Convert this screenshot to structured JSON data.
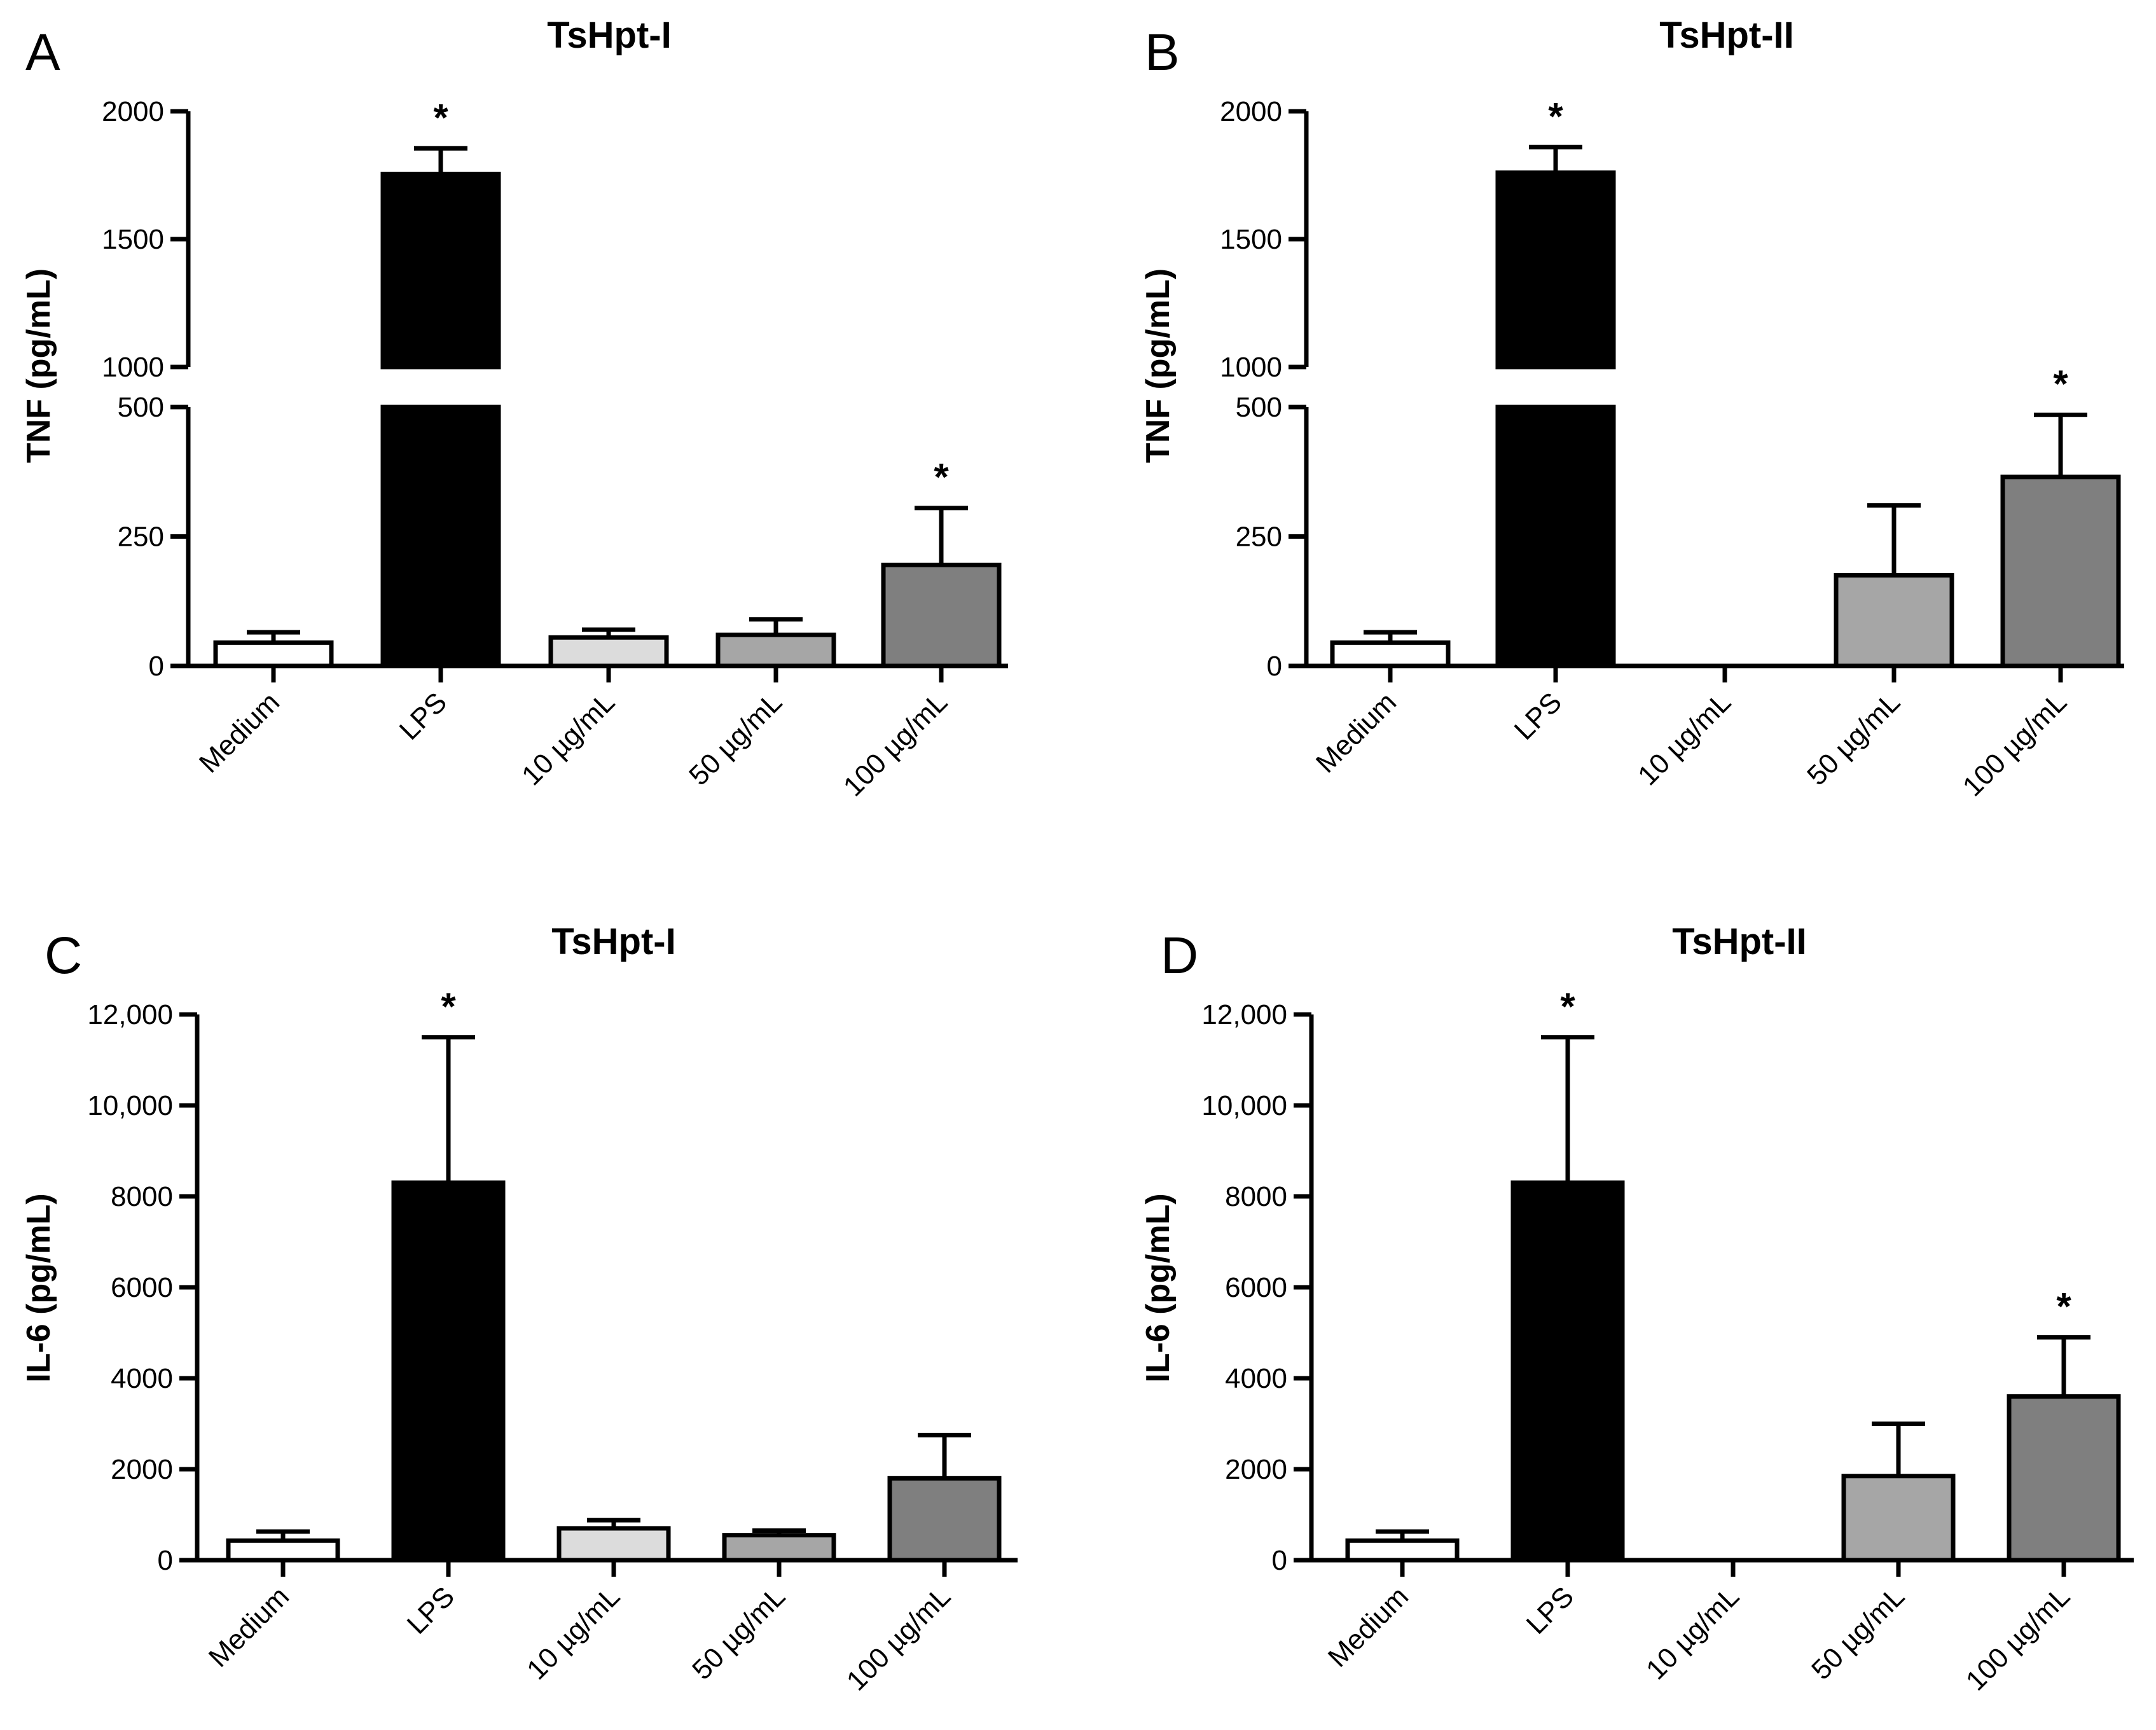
{
  "figure": {
    "colors": {
      "Medium": "#ffffff",
      "LPS": "#000000",
      "10 µg/mL": "#dcdcdc",
      "50 µg/mL": "#a6a6a6",
      "100 µg/mL": "#7f7f7f"
    }
  },
  "chart_data": [
    {
      "type": "bar",
      "panel": "A",
      "title": "TsHpt-I",
      "ylabel": "TNF (pg/mL)",
      "xlabel": "",
      "categories": [
        "Medium",
        "LPS",
        "10 µg/mL",
        "50 µg/mL",
        "100 µg/mL"
      ],
      "values": [
        45,
        1755,
        55,
        60,
        195
      ],
      "errors": [
        20,
        100,
        15,
        30,
        110
      ],
      "significance": [
        "",
        "*",
        "",
        "",
        "*"
      ],
      "axis_break": {
        "lower": [
          0,
          500
        ],
        "upper": [
          1000,
          2000
        ]
      },
      "yticks_lower": [
        0,
        250,
        500
      ],
      "yticks_upper": [
        1000,
        1500,
        2000
      ],
      "ytick_labels_lower": [
        "0",
        "250",
        "500"
      ],
      "ytick_labels_upper": [
        "1000",
        "1500",
        "2000"
      ]
    },
    {
      "type": "bar",
      "panel": "B",
      "title": "TsHpt-II",
      "ylabel": "TNF (pg/mL)",
      "xlabel": "",
      "categories": [
        "Medium",
        "LPS",
        "10 µg/mL",
        "50 µg/mL",
        "100 µg/mL"
      ],
      "values": [
        45,
        1760,
        0,
        175,
        365
      ],
      "errors": [
        20,
        100,
        0,
        135,
        120
      ],
      "significance": [
        "",
        "*",
        "",
        "",
        "*"
      ],
      "axis_break": {
        "lower": [
          0,
          500
        ],
        "upper": [
          1000,
          2000
        ]
      },
      "yticks_lower": [
        0,
        250,
        500
      ],
      "yticks_upper": [
        1000,
        1500,
        2000
      ],
      "ytick_labels_lower": [
        "0",
        "250",
        "500"
      ],
      "ytick_labels_upper": [
        "1000",
        "1500",
        "2000"
      ]
    },
    {
      "type": "bar",
      "panel": "C",
      "title": "TsHpt-I",
      "ylabel": "IL-6 (pg/mL)",
      "xlabel": "",
      "categories": [
        "Medium",
        "LPS",
        "10 µg/mL",
        "50 µg/mL",
        "100 µg/mL"
      ],
      "values": [
        430,
        8300,
        700,
        550,
        1800
      ],
      "errors": [
        200,
        3200,
        180,
        100,
        950
      ],
      "significance": [
        "",
        "*",
        "",
        "",
        ""
      ],
      "ylim": [
        0,
        12000
      ],
      "yticks": [
        0,
        2000,
        4000,
        6000,
        8000,
        10000,
        12000
      ],
      "ytick_labels": [
        "0",
        "2000",
        "4000",
        "6000",
        "8000",
        "10,000",
        "12,000"
      ]
    },
    {
      "type": "bar",
      "panel": "D",
      "title": "TsHpt-II",
      "ylabel": "IL-6 (pg/mL)",
      "xlabel": "",
      "categories": [
        "Medium",
        "LPS",
        "10 µg/mL",
        "50 µg/mL",
        "100 µg/mL"
      ],
      "values": [
        430,
        8300,
        0,
        1850,
        3600
      ],
      "errors": [
        200,
        3200,
        0,
        1150,
        1300
      ],
      "significance": [
        "",
        "*",
        "",
        "",
        "*"
      ],
      "ylim": [
        0,
        12000
      ],
      "yticks": [
        0,
        2000,
        4000,
        6000,
        8000,
        10000,
        12000
      ],
      "ytick_labels": [
        "0",
        "2000",
        "4000",
        "6000",
        "8000",
        "10,000",
        "12,000"
      ]
    }
  ]
}
